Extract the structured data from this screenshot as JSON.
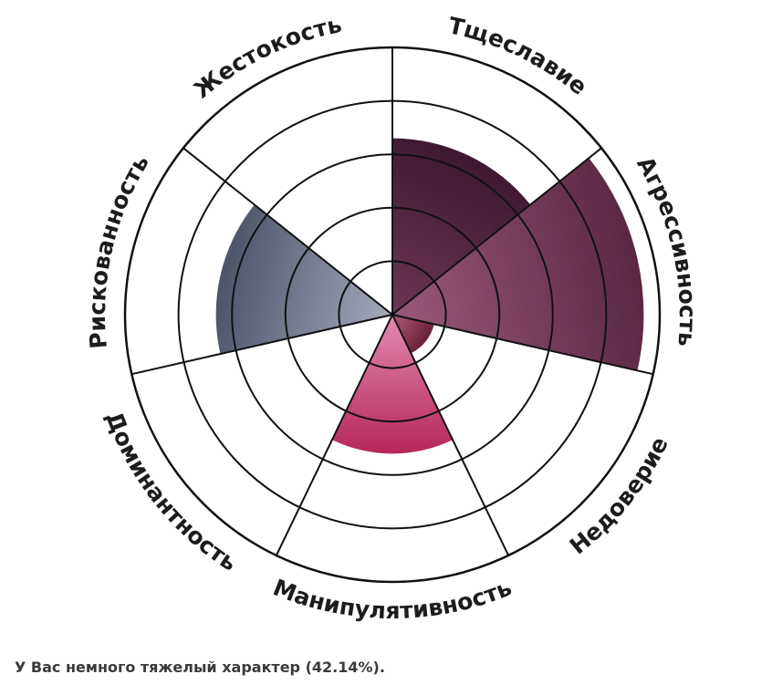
{
  "chart_data": {
    "type": "polar-area",
    "title": "",
    "rlim": [
      0,
      5
    ],
    "rings": 5,
    "grid": true,
    "categories": [
      "Тщеславие",
      "Агрессивность",
      "Недоверие",
      "Манипулятивность",
      "Доминантность",
      "Рискованность",
      "Жестокость"
    ],
    "values": [
      3.3,
      4.7,
      0.8,
      2.6,
      0.0,
      3.3,
      0.0
    ],
    "colors": [
      [
        "#3e1830",
        "#6e3654"
      ],
      [
        "#5a2743",
        "#9a5a7a"
      ],
      [
        "#6a2038",
        "#b05a78"
      ],
      [
        "#b5275a",
        "#e28ab0"
      ],
      [
        "#777777",
        "#aaaaaa"
      ],
      [
        "#4d5468",
        "#a4a9ba"
      ],
      [
        "#777777",
        "#aaaaaa"
      ]
    ]
  },
  "result_text": "У Вас немного тяжелый характер (42.14%)."
}
